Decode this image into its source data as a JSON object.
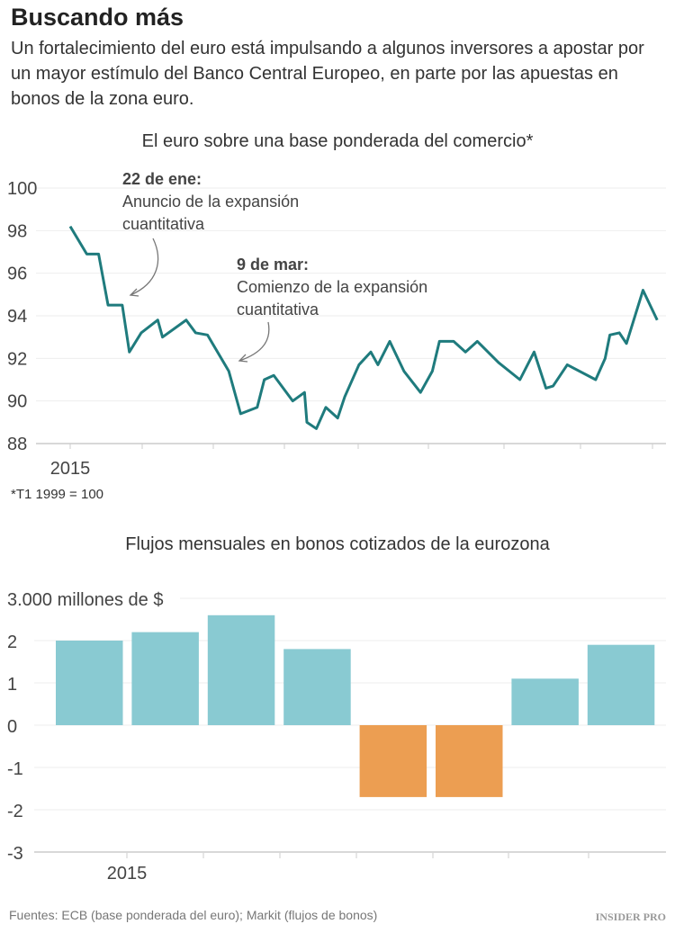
{
  "title": "Buscando más",
  "subtitle": "Un fortalecimiento del euro está impulsando a algunos inversores a apostar por un mayor estímulo del Banco Central Europeo, en parte por las apuestas en bonos de la zona euro.",
  "footnote": "*T1 1999 = 100",
  "source": "Fuentes: ECB (base ponderada del euro); Markit (flujos de bonos)",
  "logo": "INSIDER PRO",
  "chart_data": [
    {
      "type": "line",
      "title": "El euro sobre una base ponderada del comercio*",
      "ylim": [
        88,
        100
      ],
      "yticks": [
        "100",
        "98",
        "96",
        "94",
        "92",
        "90",
        "88"
      ],
      "xtick_label": "2015",
      "grid": true,
      "color": "#1f7b7d",
      "annotations": [
        {
          "date": "22 de ene:",
          "text": [
            "Anuncio de la expansión",
            "cuantitativa"
          ]
        },
        {
          "date": "9 de mar:",
          "text": [
            "Comienzo de la expansión",
            "cuantitativa"
          ]
        }
      ],
      "series": [
        {
          "x": [
            "2015-01-01",
            "2015-01-08",
            "2015-01-13",
            "2015-01-17",
            "2015-01-23",
            "2015-01-26",
            "2015-01-31",
            "2015-02-07",
            "2015-02-09",
            "2015-02-19",
            "2015-02-23",
            "2015-02-28",
            "2015-03-09",
            "2015-03-14",
            "2015-03-21",
            "2015-03-24",
            "2015-03-28",
            "2015-04-05",
            "2015-04-10",
            "2015-04-11",
            "2015-04-15",
            "2015-04-19",
            "2015-04-24",
            "2015-04-27",
            "2015-05-03",
            "2015-05-08",
            "2015-05-11",
            "2015-05-16",
            "2015-05-22",
            "2015-05-29",
            "2015-06-03",
            "2015-06-06",
            "2015-06-12",
            "2015-06-17",
            "2015-06-22",
            "2015-07-01",
            "2015-07-10",
            "2015-07-16",
            "2015-07-21",
            "2015-07-24",
            "2015-07-30",
            "2015-08-11",
            "2015-08-15",
            "2015-08-17",
            "2015-08-21",
            "2015-08-24",
            "2015-08-31",
            "2015-09-06"
          ],
          "y": [
            98.2,
            96.9,
            96.9,
            94.5,
            94.5,
            92.3,
            93.2,
            93.8,
            93.0,
            93.8,
            93.2,
            93.1,
            91.4,
            89.4,
            89.7,
            91.0,
            91.2,
            90.0,
            90.4,
            89.0,
            88.7,
            89.7,
            89.2,
            90.2,
            91.7,
            92.3,
            91.7,
            92.8,
            91.4,
            90.4,
            91.4,
            92.8,
            92.8,
            92.3,
            92.8,
            91.8,
            91.0,
            92.3,
            90.6,
            90.7,
            91.7,
            91.0,
            92.0,
            93.1,
            93.2,
            92.7,
            95.2,
            93.8
          ]
        }
      ]
    },
    {
      "type": "bar",
      "title": "Flujos mensuales en bonos cotizados de la eurozona",
      "ylabel": "3.000 millones de $",
      "ylim": [
        -3,
        3
      ],
      "yticks": [
        "2",
        "1",
        "0",
        "-1",
        "-2",
        "-3"
      ],
      "xtick_label": "2015",
      "grid": true,
      "values": [
        2.0,
        2.2,
        2.6,
        1.8,
        -1.7,
        -1.7,
        1.1,
        1.9
      ],
      "colors": {
        "positive": "#89cad2",
        "negative": "#ec9e52"
      }
    }
  ]
}
